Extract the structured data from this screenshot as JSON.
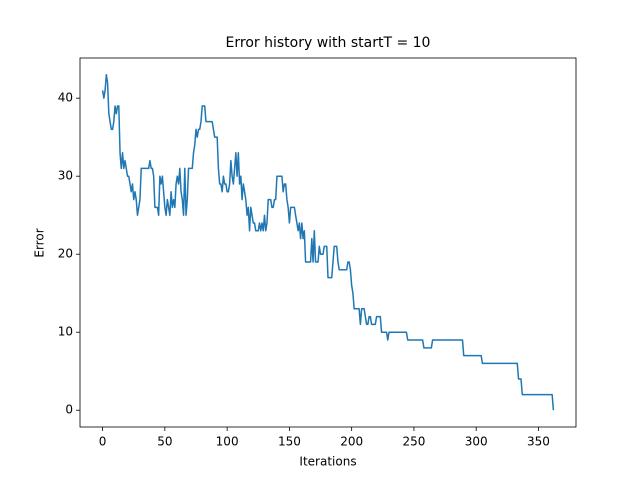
{
  "chart_data": {
    "type": "line",
    "title": "Error history with startT = 10",
    "x_label": "Iterations",
    "y_label": "Error",
    "color": "#1f77b4",
    "values": [
      41,
      40,
      41,
      43,
      42,
      38,
      37,
      36,
      36,
      37,
      39,
      38,
      39,
      39,
      33,
      31,
      33,
      31,
      32,
      31,
      30,
      30,
      29,
      28,
      29,
      27,
      28,
      27,
      25,
      26,
      27,
      31,
      31,
      31,
      31,
      31,
      31,
      31,
      32,
      31,
      31,
      30,
      26,
      26,
      26,
      25,
      30,
      29,
      30,
      28,
      26,
      25,
      27,
      26,
      25,
      28,
      26,
      27,
      26,
      29,
      30,
      29,
      31,
      28,
      27,
      25,
      31,
      25,
      27,
      31,
      31,
      31,
      31,
      33,
      34,
      36,
      35,
      36,
      36,
      37,
      39,
      39,
      39,
      37,
      37,
      37,
      37,
      37,
      37,
      36,
      35,
      35,
      35,
      31,
      29,
      29,
      28,
      30,
      29,
      29,
      28,
      28,
      29,
      32,
      30,
      29,
      31,
      33,
      30,
      33,
      29,
      30,
      27,
      29,
      28,
      27,
      25,
      26,
      23,
      26,
      25,
      24,
      24,
      23,
      23,
      23,
      24,
      23,
      24,
      23,
      25,
      23,
      24,
      27,
      27,
      27,
      26,
      26,
      27,
      27,
      30,
      30,
      30,
      30,
      30,
      28,
      29,
      29,
      27,
      26,
      24,
      26,
      26,
      26,
      26,
      25,
      24,
      23,
      24,
      22,
      24,
      22,
      23,
      19,
      19,
      19,
      19,
      19,
      22,
      19,
      23,
      19,
      19,
      19,
      21,
      20,
      20,
      20,
      21,
      21,
      21,
      17,
      17,
      17,
      17,
      19,
      21,
      21,
      21,
      19,
      18,
      18,
      18,
      18,
      18,
      18,
      18,
      19,
      19,
      18,
      16,
      15,
      13,
      13,
      13,
      13,
      13,
      11,
      13,
      13,
      13,
      12,
      11,
      11,
      12,
      12,
      11,
      11,
      11,
      11,
      12,
      12,
      12,
      12,
      10,
      10,
      10,
      10,
      10,
      9,
      10,
      10,
      10,
      10,
      10,
      10,
      10,
      10,
      10,
      10,
      10,
      10,
      10,
      10,
      10,
      9,
      9,
      9,
      9,
      9,
      9,
      9,
      9,
      9,
      9,
      9,
      9,
      9,
      8,
      8,
      8,
      8,
      8,
      8,
      8,
      9,
      9,
      9,
      9,
      9,
      9,
      9,
      9,
      9,
      9,
      9,
      9,
      9,
      9,
      9,
      9,
      9,
      9,
      9,
      9,
      9,
      9,
      9,
      9,
      9,
      7,
      7,
      7,
      7,
      7,
      7,
      7,
      7,
      7,
      7,
      7,
      7,
      7,
      7,
      7,
      6,
      6,
      6,
      6,
      6,
      6,
      6,
      6,
      6,
      6,
      6,
      6,
      6,
      6,
      6,
      6,
      6,
      6,
      6,
      6,
      6,
      6,
      6,
      6,
      6,
      6,
      6,
      6,
      6,
      4,
      4,
      4,
      2,
      2,
      2,
      2,
      2,
      2,
      2,
      2,
      2,
      2,
      2,
      2,
      2,
      2,
      2,
      2,
      2,
      2,
      2,
      2,
      2,
      2,
      2,
      2,
      2,
      0
    ],
    "xlim": [
      -18.15,
      380.15
    ],
    "xticks": [
      0,
      50,
      100,
      150,
      200,
      250,
      300,
      350
    ],
    "ylim": [
      -2.15,
      45.15
    ],
    "yticks": [
      0,
      10,
      20,
      30,
      40
    ]
  }
}
